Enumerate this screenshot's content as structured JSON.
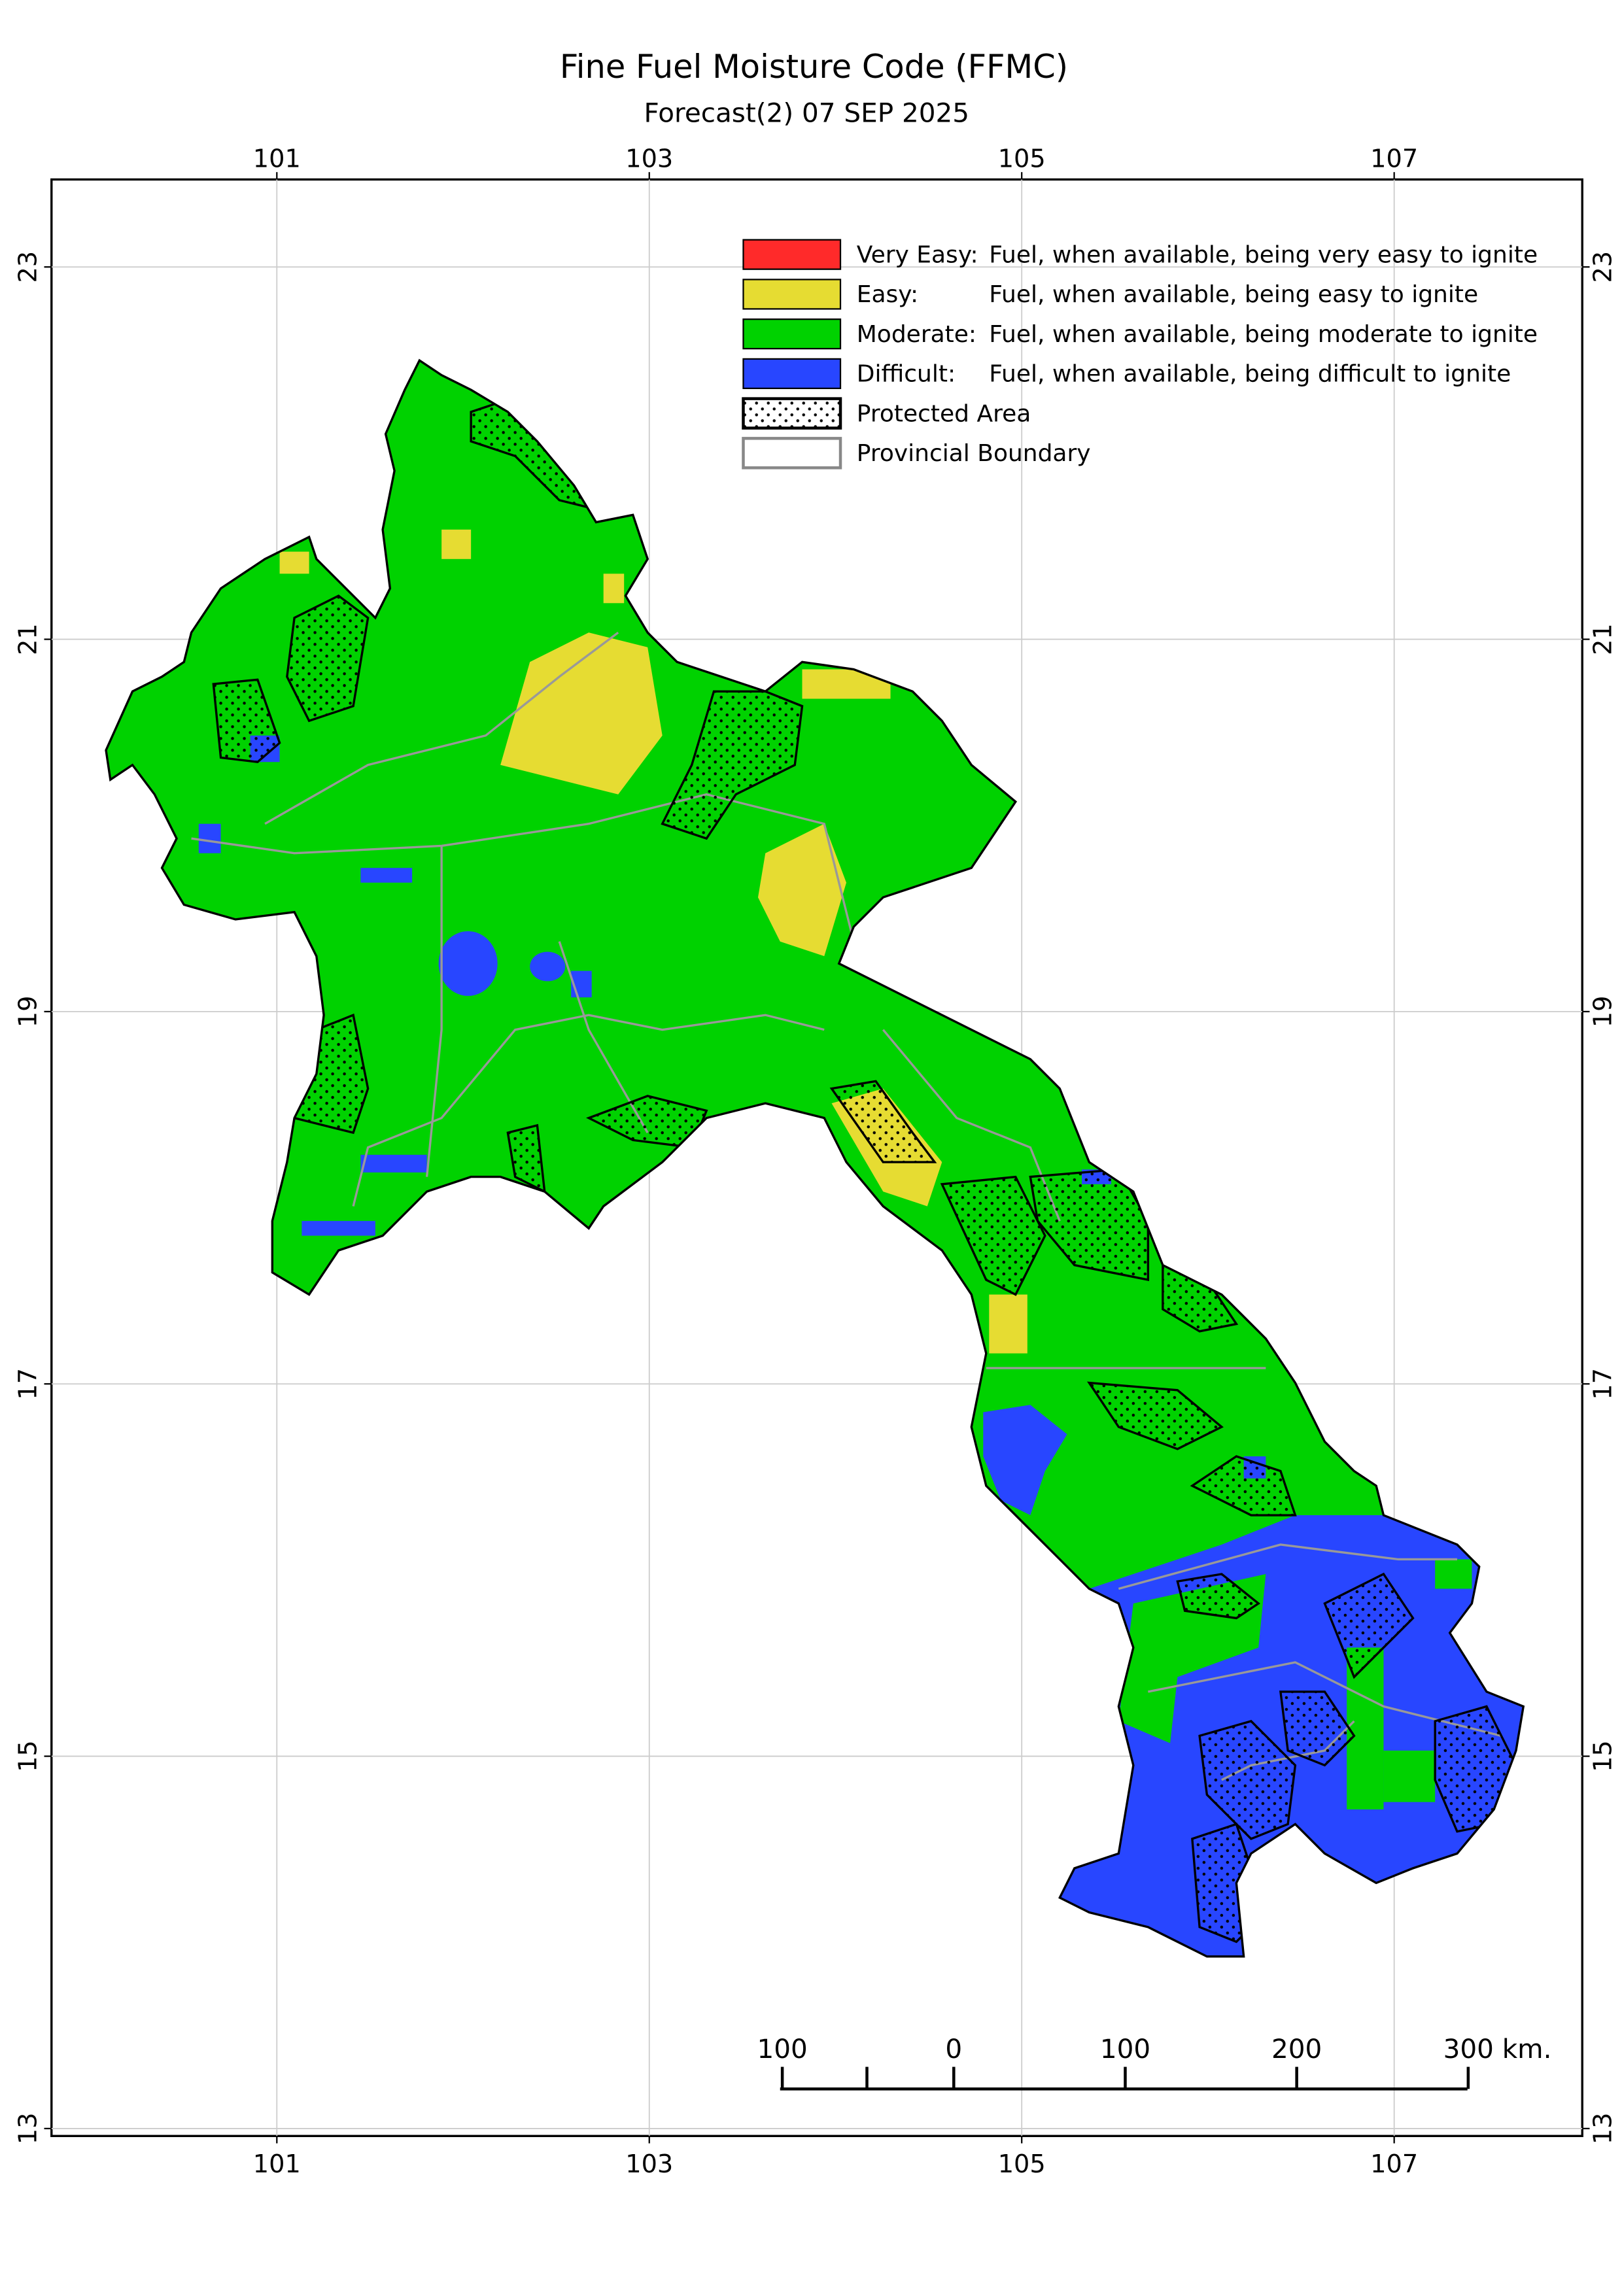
{
  "chart_data": {
    "type": "map",
    "title": "Fine Fuel Moisture Code (FFMC)",
    "subtitle": "Forecast(2) 07 SEP 2025",
    "xlim": [
      99.79,
      108.01
    ],
    "ylim": [
      12.96,
      23.47
    ],
    "xticks": [
      101,
      103,
      105,
      107
    ],
    "yticks": [
      13,
      15,
      17,
      19,
      21,
      23
    ],
    "grid": true,
    "legend": [
      {
        "label": "Very Easy:",
        "description": "Fuel, when available, being very easy to ignite",
        "color": "#ff2a2a"
      },
      {
        "label": "Easy:",
        "description": "Fuel, when available, being easy to ignite",
        "color": "#e6dc32"
      },
      {
        "label": "Moderate:",
        "description": "Fuel, when available, being moderate to ignite",
        "color": "#00d200"
      },
      {
        "label": "Difficult:",
        "description": "Fuel, when available, being difficult to ignite",
        "color": "#2846ff"
      },
      {
        "label": "Protected Area"
      },
      {
        "label": "Provincial Boundary"
      }
    ],
    "scale_bar": {
      "ticks": [
        {
          "value": -100,
          "label": "100"
        },
        0,
        100,
        200,
        {
          "value": 300,
          "label": "300 km."
        }
      ]
    }
  }
}
